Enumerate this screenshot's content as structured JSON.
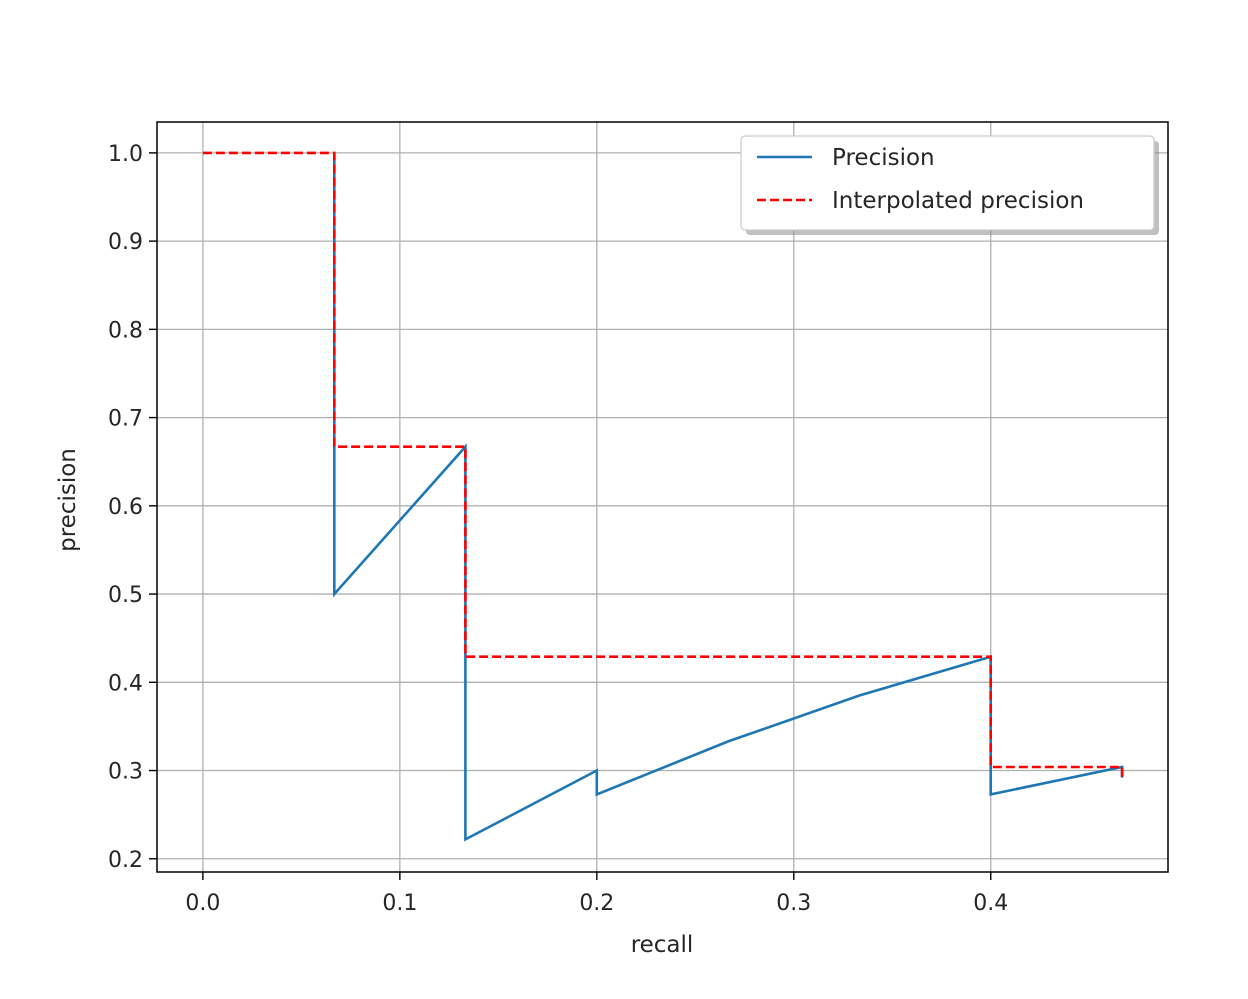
{
  "chart_data": {
    "type": "line",
    "xlabel": "recall",
    "ylabel": "precision",
    "xlim": [
      -0.0233,
      0.49
    ],
    "ylim": [
      0.185,
      1.035
    ],
    "xticks": [
      0.0,
      0.1,
      0.2,
      0.3,
      0.4
    ],
    "xtick_labels": [
      "0.0",
      "0.1",
      "0.2",
      "0.3",
      "0.4"
    ],
    "yticks": [
      0.2,
      0.3,
      0.4,
      0.5,
      0.6,
      0.7,
      0.8,
      0.9,
      1.0
    ],
    "ytick_labels": [
      "0.2",
      "0.3",
      "0.4",
      "0.5",
      "0.6",
      "0.7",
      "0.8",
      "0.9",
      "1.0"
    ],
    "grid": true,
    "legend_position": "top-right",
    "series": [
      {
        "name": "Precision",
        "color": "#1f77b4",
        "style": "solid",
        "x": [
          0.0667,
          0.0667,
          0.0667,
          0.1333,
          0.1333,
          0.1333,
          0.2,
          0.2,
          0.2667,
          0.3333,
          0.4,
          0.4,
          0.4667,
          0.4667
        ],
        "y": [
          1.0,
          0.667,
          0.5,
          0.667,
          0.429,
          0.222,
          0.3,
          0.273,
          0.333,
          0.385,
          0.429,
          0.273,
          0.304,
          0.292
        ]
      },
      {
        "name": "Interpolated precision",
        "color": "#ff0000",
        "style": "dashed",
        "x": [
          0.0,
          0.0667,
          0.0667,
          0.1333,
          0.1333,
          0.4,
          0.4,
          0.4667,
          0.4667
        ],
        "y": [
          1.0,
          1.0,
          0.667,
          0.667,
          0.429,
          0.429,
          0.304,
          0.304,
          0.292
        ]
      }
    ]
  }
}
